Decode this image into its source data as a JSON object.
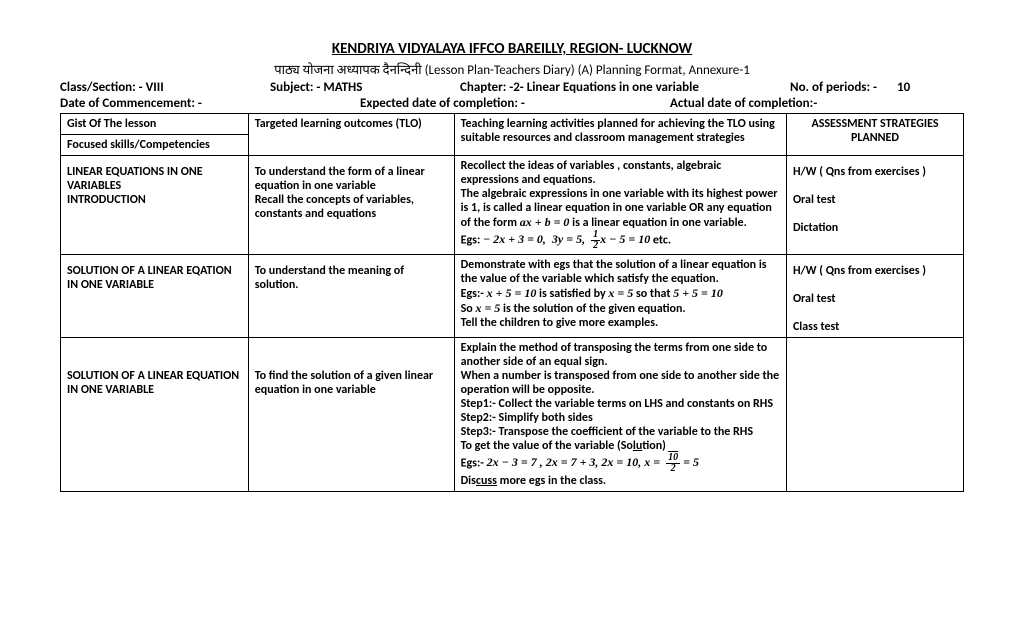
{
  "header": {
    "title": "KENDRIYA VIDYALAYA IFFCO BAREILLY, REGION- LUCKNOW",
    "subtitle": "पाठ्य योजना  अध्यापक  दैनन्दिनी (Lesson Plan-Teachers Diary)  (A) Planning Format,  Annexure-1",
    "class_label": "Class/Section: - VIII",
    "subject_label": "Subject: - MATHS",
    "chapter_label": "Chapter: -2- Linear Equations in one variable",
    "periods_label": "No. of periods: -",
    "periods_value": "10",
    "commencement_label": "Date of Commencement: -",
    "expected_label": "Expected date of completion: -",
    "actual_label": "Actual date of completion:-"
  },
  "columns": {
    "c1a": "Gist Of The  lesson",
    "c1b": "Focused skills/Competencies",
    "c2": "Targeted learning outcomes (TLO)",
    "c3": "Teaching learning activities planned for achieving the TLO using suitable resources and classroom management strategies",
    "c4a": "ASSESSMENT STRATEGIES",
    "c4b": "PLANNED"
  },
  "rows": [
    {
      "gist": "LINEAR EQUATIONS IN ONE VARIABLES\nINTRODUCTION",
      "tlo": "To understand the form of a linear equation in one variable\nRecall the concepts of variables, constants and equations",
      "act_html": "Recollect the ideas of variables , constants, algebraic expressions and equations.<br>The algebraic expressions in one variable with its highest power is 1, is called a linear equation in one variable OR any equation of the form  <span class='math'>ax + b = 0</span> is a linear equation in one variable.<br>Egs: <span class='math'>− 2x + 3 = 0,&nbsp; 3y = 5,&nbsp; <span class='frac'><span class='n'>1</span><span class='d'>2</span></span>x − 5 = 10</span> etc.",
      "assess": "H/W ( Qns from exercises )\n\nOral test\n\nDictation"
    },
    {
      "gist": "SOLUTION OF A LINEAR EQATION IN ONE VARIABLE",
      "tlo": "To understand the meaning of solution.",
      "act_html": "Demonstrate with egs that the solution of a linear equation is the value of the variable which satisfy the equation.<br>Egs:- <span class='math'>x + 5 = 10</span> is satisfied by <span class='math'>x = 5</span> so that <span class='math'>5 + 5 = 10</span><br>So <span class='math'>x = 5</span> is the solution of the given equation.<br>Tell the children to give more examples.",
      "assess": "H/W ( Qns from exercises )\n\nOral test\n\nClass test"
    },
    {
      "gist": "SOLUTION OF A LINEAR EQUATION IN ONE VARIABLE",
      "tlo": "To find the solution of a given linear equation in one variable",
      "act_html": "Explain the method of transposing the terms from one side to another side of an equal sign.<br>When a number is transposed from one side to another side the operation will be opposite.<br>Step1:- Collect the variable terms on LHS and constants on RHS<br>Step2:- Simplify both sides<br>Step3:- Transpose the coefficient of the variable to the RHS<br>To get the value of the variable (So<span class='ulsol'>lu</span>tion)<br>Egs:- <span class='math'>2x − 3 = 7 , 2x = 7 + 3, 2x = 10, x = &nbsp;<span class='frac'><span class='n'><span class='line-over'>10</span></span><span class='d'>2</span></span> = 5</span><br>Dis<span class='ulsol'>cuss</span> more egs in the class.",
      "assess": ""
    }
  ]
}
